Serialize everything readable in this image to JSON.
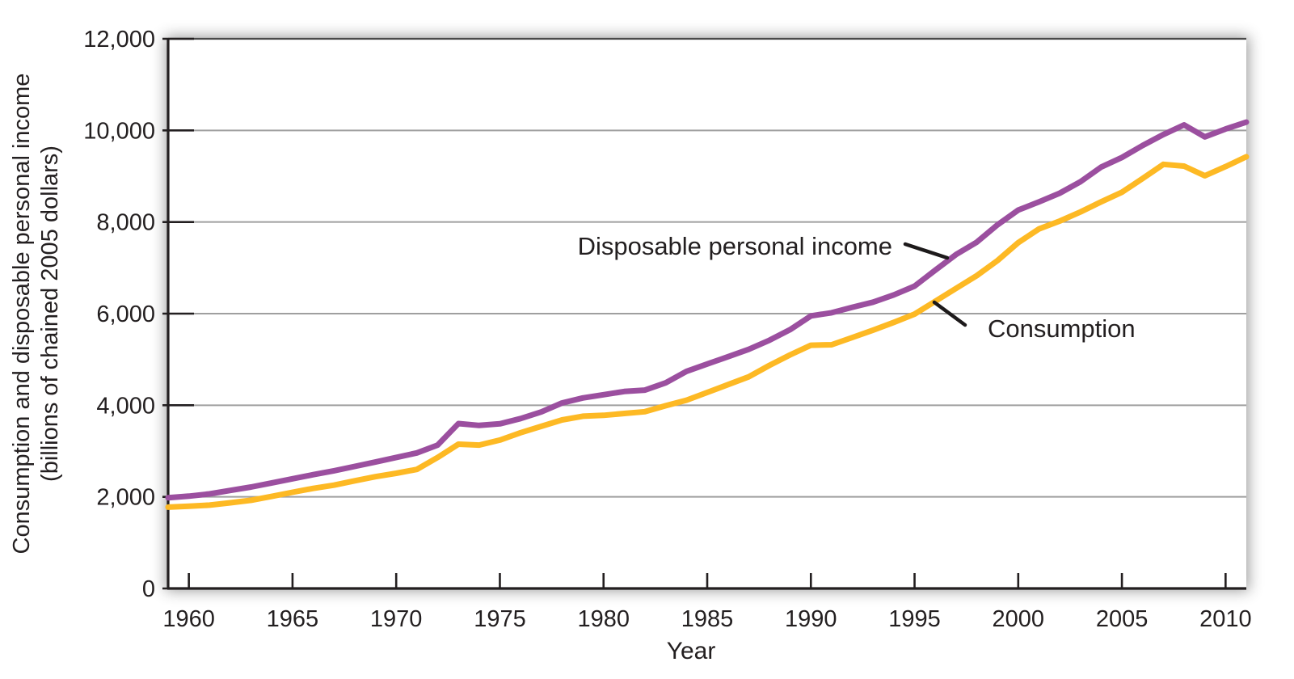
{
  "figure": {
    "y_axis_title_line1": "Consumption and disposable personal income",
    "y_axis_title_line2": "(billions of chained 2005 dollars)",
    "x_axis_title": "Year"
  },
  "colors": {
    "income_line": "#9b4f9f",
    "consumption_line": "#fdb924",
    "gridline": "#9f9f9f",
    "axis": "#231f20",
    "text": "#231f20",
    "annotation_pointer": "#1d1a1b"
  },
  "chart_data": {
    "type": "line",
    "title": "",
    "xlabel": "Year",
    "ylabel": "Consumption and disposable personal income (billions of chained 2005 dollars)",
    "xlim": [
      1959,
      2011
    ],
    "ylim": [
      0,
      12000
    ],
    "grid": "horizontal gridlines every 2000",
    "legend_position": "inline annotations with pointer lines",
    "x_ticks": [
      1960,
      1965,
      1970,
      1975,
      1980,
      1985,
      1990,
      1995,
      2000,
      2005,
      2010
    ],
    "x_tick_labels": [
      "1960",
      "1965",
      "1970",
      "1975",
      "1980",
      "1985",
      "1990",
      "1995",
      "2000",
      "2005",
      "2010"
    ],
    "y_ticks": [
      0,
      2000,
      4000,
      6000,
      8000,
      10000,
      12000
    ],
    "y_tick_labels": [
      "0",
      "2,000",
      "4,000",
      "6,000",
      "8,000",
      "10,000",
      "12,000"
    ],
    "x": [
      1959,
      1960,
      1961,
      1962,
      1963,
      1964,
      1965,
      1966,
      1967,
      1968,
      1969,
      1970,
      1971,
      1972,
      1973,
      1974,
      1975,
      1976,
      1977,
      1978,
      1979,
      1980,
      1981,
      1982,
      1983,
      1984,
      1985,
      1986,
      1987,
      1988,
      1989,
      1990,
      1991,
      1992,
      1993,
      1994,
      1995,
      1996,
      1997,
      1998,
      1999,
      2000,
      2001,
      2002,
      2003,
      2004,
      2005,
      2006,
      2007,
      2008,
      2009,
      2010,
      2011
    ],
    "series": [
      {
        "name": "Disposable personal income",
        "color": "#9b4f9f",
        "values": [
          1980,
          2015,
          2065,
          2140,
          2215,
          2305,
          2395,
          2485,
          2570,
          2665,
          2760,
          2860,
          2960,
          3130,
          3600,
          3560,
          3595,
          3710,
          3855,
          4050,
          4160,
          4230,
          4300,
          4330,
          4490,
          4740,
          4900,
          5060,
          5220,
          5420,
          5650,
          5950,
          6020,
          6140,
          6250,
          6410,
          6600,
          6950,
          7290,
          7560,
          7940,
          8260,
          8440,
          8630,
          8880,
          9200,
          9410,
          9670,
          9910,
          10120,
          9860,
          10030,
          10180
        ]
      },
      {
        "name": "Consumption",
        "color": "#fdb924",
        "values": [
          1775,
          1795,
          1820,
          1870,
          1925,
          2010,
          2100,
          2185,
          2255,
          2350,
          2440,
          2515,
          2600,
          2860,
          3150,
          3130,
          3240,
          3400,
          3540,
          3680,
          3760,
          3780,
          3820,
          3860,
          3990,
          4110,
          4280,
          4450,
          4620,
          4870,
          5100,
          5310,
          5320,
          5480,
          5640,
          5810,
          5990,
          6270,
          6550,
          6830,
          7160,
          7550,
          7850,
          8020,
          8220,
          8440,
          8650,
          8950,
          9260,
          9220,
          9010,
          9210,
          9425
        ]
      }
    ],
    "annotations": [
      {
        "id": "income",
        "text": "Disposable personal income",
        "points_to_series": "Disposable personal income"
      },
      {
        "id": "consumption",
        "text": "Consumption",
        "points_to_series": "Consumption"
      }
    ]
  }
}
